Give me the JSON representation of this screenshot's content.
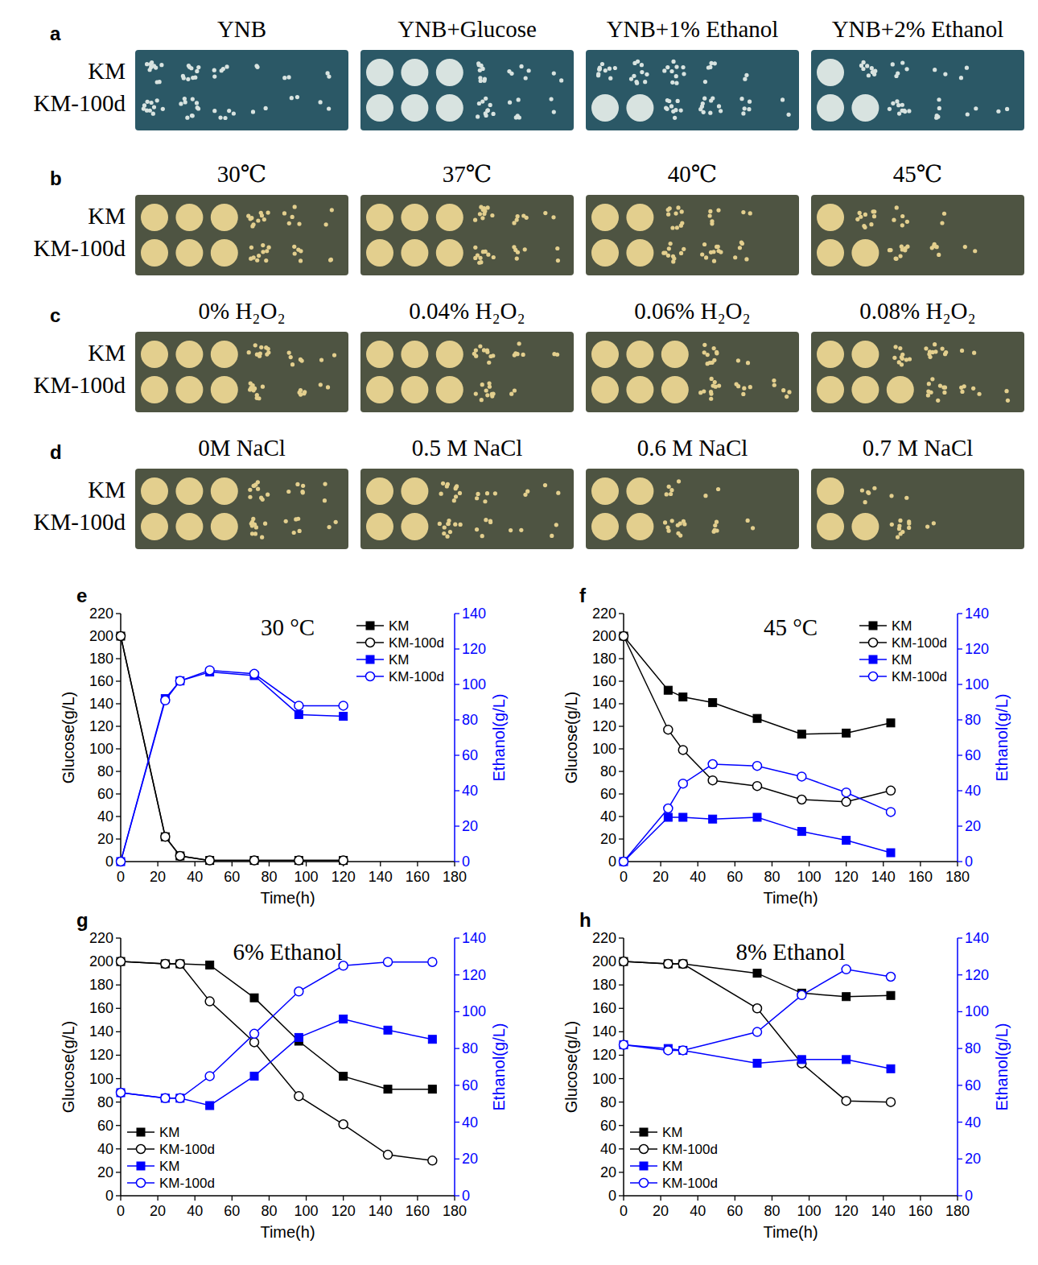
{
  "plates": {
    "rows": [
      {
        "letter": "a",
        "strains": [
          "KM",
          "KM-100d"
        ],
        "panels": [
          {
            "title": "YNB",
            "growth": [
              [
                3,
                3,
                2,
                1,
                1,
                1
              ],
              [
                3,
                3,
                2,
                1,
                1,
                1
              ]
            ]
          },
          {
            "title": "YNB+Glucose",
            "growth": [
              [
                4,
                4,
                4,
                3,
                2,
                1
              ],
              [
                4,
                4,
                4,
                3,
                2,
                1
              ]
            ]
          },
          {
            "title": "YNB+1% Ethanol",
            "growth": [
              [
                3,
                3,
                3,
                2,
                1,
                0
              ],
              [
                4,
                4,
                3,
                3,
                2,
                1
              ]
            ]
          },
          {
            "title": "YNB+2% Ethanol",
            "growth": [
              [
                4,
                3,
                2,
                1,
                1,
                0
              ],
              [
                4,
                4,
                3,
                2,
                1,
                1
              ]
            ]
          }
        ]
      },
      {
        "letter": "b",
        "strains": [
          "KM",
          "KM-100d"
        ],
        "panels": [
          {
            "title": "30℃",
            "growth": [
              [
                4,
                4,
                4,
                3,
                2,
                1
              ],
              [
                4,
                4,
                4,
                3,
                2,
                1
              ]
            ]
          },
          {
            "title": "37℃",
            "growth": [
              [
                4,
                4,
                4,
                3,
                2,
                1
              ],
              [
                4,
                4,
                4,
                3,
                2,
                1
              ]
            ]
          },
          {
            "title": "40℃",
            "growth": [
              [
                4,
                4,
                3,
                2,
                1,
                0
              ],
              [
                4,
                4,
                3,
                3,
                2,
                0
              ]
            ]
          },
          {
            "title": "45℃",
            "growth": [
              [
                4,
                3,
                2,
                1,
                0,
                0
              ],
              [
                4,
                4,
                3,
                2,
                1,
                0
              ]
            ]
          }
        ]
      },
      {
        "letter": "c",
        "strains": [
          "KM",
          "KM-100d"
        ],
        "panels": [
          {
            "title": "0% H₂O₂",
            "growth": [
              [
                4,
                4,
                4,
                3,
                2,
                1
              ],
              [
                4,
                4,
                4,
                3,
                2,
                1
              ]
            ]
          },
          {
            "title": "0.04% H₂O₂",
            "growth": [
              [
                4,
                4,
                4,
                3,
                2,
                1
              ],
              [
                4,
                4,
                4,
                3,
                1,
                0
              ]
            ]
          },
          {
            "title": "0.06% H₂O₂",
            "growth": [
              [
                4,
                4,
                4,
                3,
                1,
                0
              ],
              [
                4,
                4,
                4,
                3,
                2,
                2
              ]
            ]
          },
          {
            "title": "0.08% H₂O₂",
            "growth": [
              [
                4,
                4,
                3,
                3,
                1,
                0
              ],
              [
                4,
                4,
                4,
                3,
                2,
                1
              ]
            ]
          }
        ]
      },
      {
        "letter": "d",
        "strains": [
          "KM",
          "KM-100d"
        ],
        "panels": [
          {
            "title": "0M NaCl",
            "growth": [
              [
                4,
                4,
                4,
                3,
                2,
                1
              ],
              [
                4,
                4,
                4,
                3,
                2,
                1
              ]
            ]
          },
          {
            "title": "0.5 M NaCl",
            "growth": [
              [
                4,
                4,
                3,
                2,
                1,
                1
              ],
              [
                4,
                4,
                3,
                2,
                1,
                1
              ]
            ]
          },
          {
            "title": "0.6 M NaCl",
            "growth": [
              [
                4,
                4,
                2,
                1,
                0,
                0
              ],
              [
                4,
                4,
                3,
                2,
                1,
                0
              ]
            ]
          },
          {
            "title": "0.7 M NaCl",
            "growth": [
              [
                4,
                2,
                1,
                0,
                0,
                0
              ],
              [
                4,
                4,
                3,
                1,
                0,
                0
              ]
            ]
          }
        ]
      }
    ]
  },
  "chart_data": [
    {
      "type": "line",
      "letter": "e",
      "title": "30 °C",
      "xlabel": "Time(h)",
      "ylabel": "Glucose(g/L)",
      "y2label": "Ethanol(g/L)",
      "x": [
        0,
        24,
        32,
        48,
        72,
        96,
        120
      ],
      "xlim": [
        0,
        180
      ],
      "xticks": [
        0,
        20,
        40,
        60,
        80,
        100,
        120,
        140,
        160,
        180
      ],
      "ylim": [
        0,
        220
      ],
      "yticks": [
        0,
        20,
        40,
        60,
        80,
        100,
        120,
        140,
        160,
        180,
        200,
        220
      ],
      "y2lim": [
        0,
        140
      ],
      "y2ticks": [
        0,
        20,
        40,
        60,
        80,
        100,
        120,
        140
      ],
      "legend": "top-right",
      "series": [
        {
          "name": "KM",
          "color": "#000000",
          "marker": "square",
          "axis": "y",
          "values": [
            200,
            22,
            5,
            1,
            1,
            1,
            1
          ]
        },
        {
          "name": "KM-100d",
          "color": "#000000",
          "marker": "open-circle",
          "axis": "y",
          "values": [
            200,
            22,
            5,
            1,
            1,
            1,
            1
          ]
        },
        {
          "name": "KM",
          "color": "#0000ff",
          "marker": "square",
          "axis": "y2",
          "values": [
            0,
            92,
            102,
            107,
            105,
            83,
            82
          ]
        },
        {
          "name": "KM-100d",
          "color": "#0000ff",
          "marker": "open-circle",
          "axis": "y2",
          "values": [
            0,
            91,
            102,
            108,
            106,
            88,
            88
          ]
        }
      ]
    },
    {
      "type": "line",
      "letter": "f",
      "title": "45 °C",
      "xlabel": "Time(h)",
      "ylabel": "Glucose(g/L)",
      "y2label": "Ethanol(g/L)",
      "x": [
        0,
        24,
        32,
        48,
        72,
        96,
        120,
        144
      ],
      "xlim": [
        0,
        180
      ],
      "xticks": [
        0,
        20,
        40,
        60,
        80,
        100,
        120,
        140,
        160,
        180
      ],
      "ylim": [
        0,
        220
      ],
      "yticks": [
        0,
        20,
        40,
        60,
        80,
        100,
        120,
        140,
        160,
        180,
        200,
        220
      ],
      "y2lim": [
        0,
        140
      ],
      "y2ticks": [
        0,
        20,
        40,
        60,
        80,
        100,
        120,
        140
      ],
      "legend": "top-right",
      "series": [
        {
          "name": "KM",
          "color": "#000000",
          "marker": "square",
          "axis": "y",
          "values": [
            200,
            152,
            146,
            141,
            127,
            113,
            114,
            123
          ]
        },
        {
          "name": "KM-100d",
          "color": "#000000",
          "marker": "open-circle",
          "axis": "y",
          "values": [
            200,
            117,
            99,
            72,
            67,
            55,
            53,
            63
          ]
        },
        {
          "name": "KM",
          "color": "#0000ff",
          "marker": "square",
          "axis": "y2",
          "values": [
            0,
            25,
            25,
            24,
            25,
            17,
            12,
            5
          ]
        },
        {
          "name": "KM-100d",
          "color": "#0000ff",
          "marker": "open-circle",
          "axis": "y2",
          "values": [
            0,
            30,
            44,
            55,
            54,
            48,
            39,
            28
          ]
        }
      ]
    },
    {
      "type": "line",
      "letter": "g",
      "title": "6% Ethanol",
      "xlabel": "Time(h)",
      "ylabel": "Glucose(g/L)",
      "y2label": "Ethanol(g/L)",
      "x": [
        0,
        24,
        32,
        48,
        72,
        96,
        120,
        144,
        168
      ],
      "xlim": [
        0,
        180
      ],
      "xticks": [
        0,
        20,
        40,
        60,
        80,
        100,
        120,
        140,
        160,
        180
      ],
      "ylim": [
        0,
        220
      ],
      "yticks": [
        0,
        20,
        40,
        60,
        80,
        100,
        120,
        140,
        160,
        180,
        200,
        220
      ],
      "y2lim": [
        0,
        140
      ],
      "y2ticks": [
        0,
        20,
        40,
        60,
        80,
        100,
        120,
        140
      ],
      "legend": "bottom-left",
      "series": [
        {
          "name": "KM",
          "color": "#000000",
          "marker": "square",
          "axis": "y",
          "values": [
            200,
            198,
            198,
            197,
            169,
            132,
            102,
            91,
            91
          ]
        },
        {
          "name": "KM-100d",
          "color": "#000000",
          "marker": "open-circle",
          "axis": "y",
          "values": [
            200,
            198,
            198,
            166,
            131,
            85,
            61,
            35,
            30
          ]
        },
        {
          "name": "KM",
          "color": "#0000ff",
          "marker": "square",
          "axis": "y2",
          "values": [
            56,
            53,
            53,
            49,
            65,
            86,
            96,
            90,
            85
          ]
        },
        {
          "name": "KM-100d",
          "color": "#0000ff",
          "marker": "open-circle",
          "axis": "y2",
          "values": [
            56,
            53,
            53,
            65,
            88,
            111,
            125,
            127,
            127
          ]
        }
      ]
    },
    {
      "type": "line",
      "letter": "h",
      "title": "8% Ethanol",
      "xlabel": "Time(h)",
      "ylabel": "Glucose(g/L)",
      "y2label": "Ethanol(g/L)",
      "x": [
        0,
        24,
        32,
        72,
        96,
        120,
        144
      ],
      "xlim": [
        0,
        180
      ],
      "xticks": [
        0,
        20,
        40,
        60,
        80,
        100,
        120,
        140,
        160,
        180
      ],
      "ylim": [
        0,
        220
      ],
      "yticks": [
        0,
        20,
        40,
        60,
        80,
        100,
        120,
        140,
        160,
        180,
        200,
        220
      ],
      "y2lim": [
        0,
        140
      ],
      "y2ticks": [
        0,
        20,
        40,
        60,
        80,
        100,
        120,
        140
      ],
      "legend": "bottom-left",
      "series": [
        {
          "name": "KM",
          "color": "#000000",
          "marker": "square",
          "axis": "y",
          "values": [
            200,
            198,
            198,
            190,
            173,
            170,
            171
          ]
        },
        {
          "name": "KM-100d",
          "color": "#000000",
          "marker": "open-circle",
          "axis": "y",
          "values": [
            200,
            198,
            198,
            160,
            113,
            81,
            80
          ]
        },
        {
          "name": "KM",
          "color": "#0000ff",
          "marker": "square",
          "axis": "y2",
          "values": [
            82,
            80,
            79,
            72,
            74,
            74,
            69
          ]
        },
        {
          "name": "KM-100d",
          "color": "#0000ff",
          "marker": "open-circle",
          "axis": "y2",
          "values": [
            82,
            79,
            79,
            89,
            109,
            123,
            119
          ]
        }
      ]
    }
  ]
}
